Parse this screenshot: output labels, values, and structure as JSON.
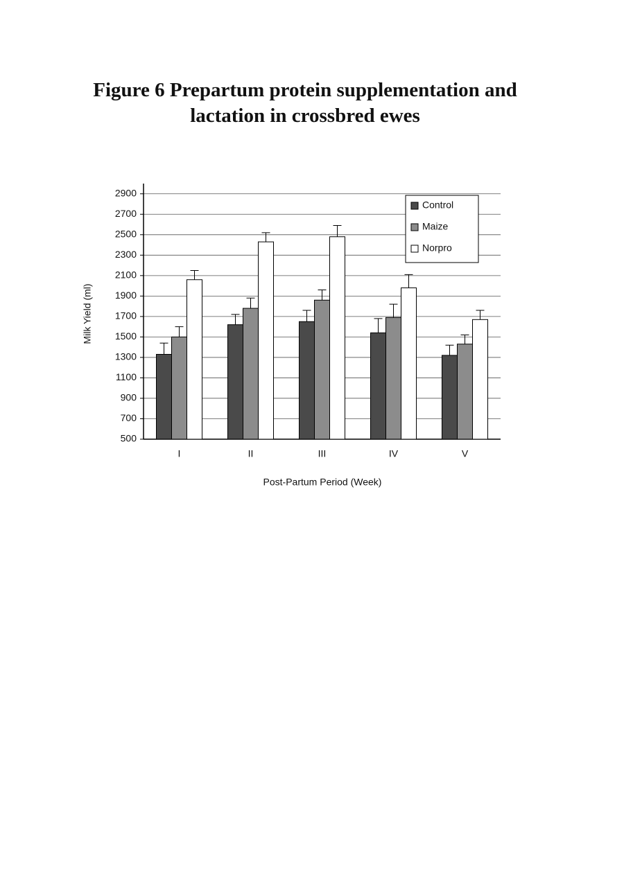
{
  "chart_data": {
    "type": "bar",
    "title": "Figure 6  Prepartum protein supplementation and lactation in crossbred ewes",
    "x_label": "Post-Partum Period (Week)",
    "y_label": "Milk Yield (ml)",
    "categories": [
      "I",
      "II",
      "III",
      "IV",
      "V"
    ],
    "series": [
      {
        "name": "Control",
        "color": "#4a4a4a",
        "values": [
          1330,
          1620,
          1650,
          1540,
          1320
        ],
        "errors": [
          110,
          100,
          110,
          140,
          100
        ]
      },
      {
        "name": "Maize",
        "color": "#8c8c8c",
        "values": [
          1500,
          1780,
          1860,
          1690,
          1430
        ],
        "errors": [
          100,
          100,
          100,
          130,
          90
        ]
      },
      {
        "name": "Norpro",
        "color": "#ffffff",
        "values": [
          2060,
          2430,
          2480,
          1980,
          1670
        ],
        "errors": [
          90,
          90,
          110,
          130,
          90
        ]
      }
    ],
    "ylim": [
      500,
      3000
    ],
    "yticks": [
      500,
      700,
      900,
      1100,
      1300,
      1500,
      1700,
      1900,
      2100,
      2300,
      2500,
      2700,
      2900
    ],
    "grid": true,
    "legend": "top-right"
  }
}
